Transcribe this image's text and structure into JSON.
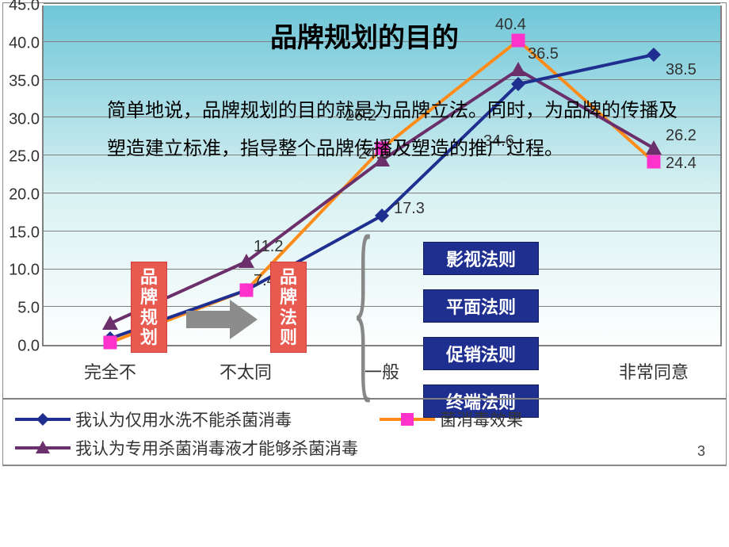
{
  "title": "品牌规划的目的",
  "body_text": "简单地说，品牌规划的目的就是为品牌立法。同时，为品牌的传播及塑造建立标准，指导整个品牌传播及塑造的推广过程。",
  "chart": {
    "type": "line",
    "ylim": [
      0,
      45
    ],
    "ytick_step": 5,
    "yticks": [
      "0.0",
      "5.0",
      "10.0",
      "15.0",
      "20.0",
      "25.0",
      "30.0",
      "35.0",
      "40.0",
      "45.0"
    ],
    "categories": [
      "完全不",
      "不太同",
      "一般",
      "",
      "非常同意"
    ],
    "plot_bg_top": "#6fc6d8",
    "plot_bg_bottom": "#fdfefe",
    "grid_color": "#808080",
    "series": [
      {
        "name": "我认为仅用水洗不能杀菌消毒",
        "color": "#1e2f8f",
        "marker": "diamond",
        "marker_fill": "#1e2f8f",
        "values": [
          1,
          7.4,
          17.3,
          34.6,
          38.5
        ],
        "labels": [
          "",
          "7.4",
          "17.3",
          "34.6",
          "38.5"
        ]
      },
      {
        "name": "……菌消毒效果",
        "name_full": "菌消毒效果",
        "color": "#ff8c1a",
        "marker": "square",
        "marker_fill": "#ff33cc",
        "values": [
          0.5,
          7.4,
          26.2,
          40.4,
          24.4
        ],
        "labels": [
          "",
          "7.4",
          "26.2",
          "40.4",
          "24.4"
        ]
      },
      {
        "name": "我认为专用杀菌消毒液才能够杀菌消毒",
        "color": "#6b2f6b",
        "marker": "triangle",
        "marker_fill": "#6b2f6b",
        "values": [
          3,
          11.2,
          24.6,
          36.5,
          26.2
        ],
        "labels": [
          "",
          "11.2",
          "24.6",
          "36.5",
          "26.2"
        ]
      }
    ]
  },
  "overlay": {
    "red_box_1": "品\n牌\n规\n划",
    "red_box_2": "品\n牌\n法\n则",
    "blue_boxes": [
      "影视法则",
      "平面法则",
      "促销法则",
      "终端法则"
    ]
  },
  "page_number": "3"
}
